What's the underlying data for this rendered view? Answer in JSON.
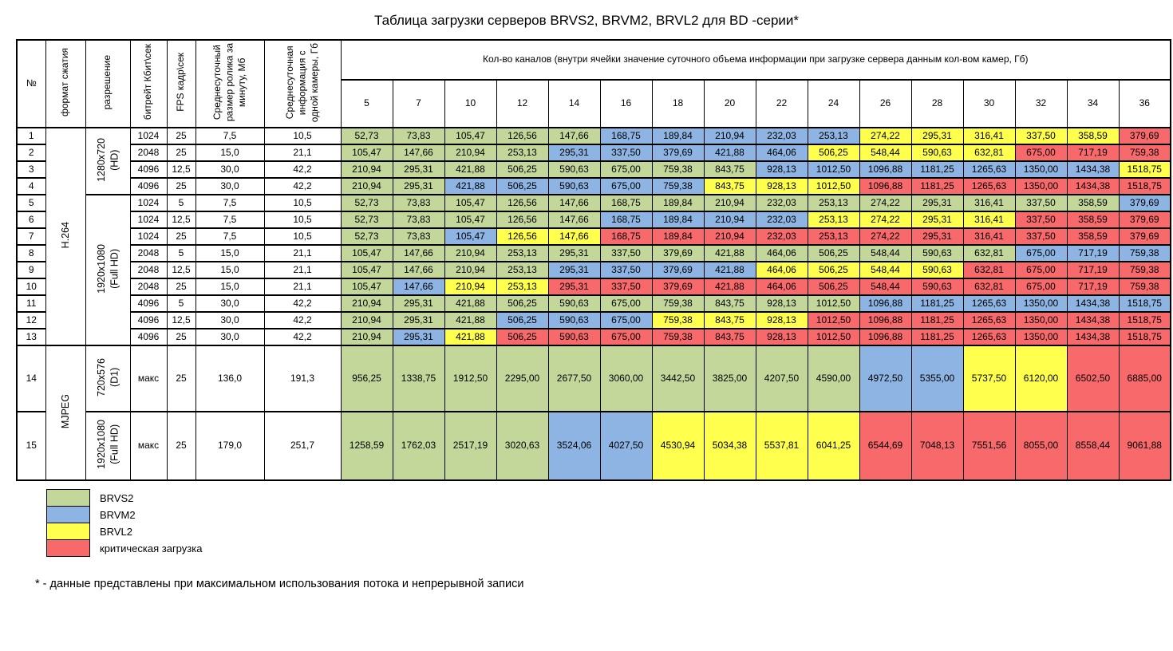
{
  "title": "Таблица загрузки серверов  BRVS2, BRVM2, BRVL2 для BD -серии*",
  "colors": {
    "G": "#c4d79b",
    "B": "#8db4e2",
    "Y": "#ffff4d",
    "R": "#f8696b"
  },
  "table": {
    "left_headers": [
      "№",
      "формат сжатия",
      "разрешение",
      "битрейт Кбит\\сек",
      "FPS кадр\\сек",
      "Среднесуточный\nразмер ролика за\nминуту, Мб",
      "Среднесуточная\nинформация с\nодной камеры, Гб"
    ],
    "channels_header": "Кол-во каналов (внутри ячейки значение суточного объема информации при загрузке сервера данным кол-вом камер, Гб)",
    "channels": [
      "5",
      "7",
      "10",
      "12",
      "14",
      "16",
      "18",
      "20",
      "22",
      "24",
      "26",
      "28",
      "30",
      "32",
      "34",
      "36"
    ],
    "format_groups": [
      {
        "label": "H.264",
        "start": 1,
        "end": 13
      },
      {
        "label": "MJPEG",
        "start": 14,
        "end": 15
      }
    ],
    "resolution_groups": [
      {
        "label": "1280x720\n(HD)",
        "start": 1,
        "end": 4
      },
      {
        "label": "1920x1080\n(Full HD)",
        "start": 5,
        "end": 13
      },
      {
        "label": "720x576\n(D1)",
        "start": 14,
        "end": 14
      },
      {
        "label": "1920x1080\n(Full HD)",
        "start": 15,
        "end": 15
      }
    ],
    "rows": [
      {
        "num": "1",
        "bitrate": "1024",
        "fps": "25",
        "size_min": "7,5",
        "per_cam": "10,5",
        "values": [
          "52,73",
          "73,83",
          "105,47",
          "126,56",
          "147,66",
          "168,75",
          "189,84",
          "210,94",
          "232,03",
          "253,13",
          "274,22",
          "295,31",
          "316,41",
          "337,50",
          "358,59",
          "379,69"
        ],
        "colors": "GGGGGBBBBBYYYYYR"
      },
      {
        "num": "2",
        "bitrate": "2048",
        "fps": "25",
        "size_min": "15,0",
        "per_cam": "21,1",
        "values": [
          "105,47",
          "147,66",
          "210,94",
          "253,13",
          "295,31",
          "337,50",
          "379,69",
          "421,88",
          "464,06",
          "506,25",
          "548,44",
          "590,63",
          "632,81",
          "675,00",
          "717,19",
          "759,38"
        ],
        "colors": "GGGGBBBBBYYYYRRR"
      },
      {
        "num": "3",
        "bitrate": "4096",
        "fps": "12,5",
        "size_min": "30,0",
        "per_cam": "42,2",
        "values": [
          "210,94",
          "295,31",
          "421,88",
          "506,25",
          "590,63",
          "675,00",
          "759,38",
          "843,75",
          "928,13",
          "1012,50",
          "1096,88",
          "1181,25",
          "1265,63",
          "1350,00",
          "1434,38",
          "1518,75"
        ],
        "colors": "GGGGGGGGBBBBBBBY"
      },
      {
        "num": "4",
        "bitrate": "4096",
        "fps": "25",
        "size_min": "30,0",
        "per_cam": "42,2",
        "values": [
          "210,94",
          "295,31",
          "421,88",
          "506,25",
          "590,63",
          "675,00",
          "759,38",
          "843,75",
          "928,13",
          "1012,50",
          "1096,88",
          "1181,25",
          "1265,63",
          "1350,00",
          "1434,38",
          "1518,75"
        ],
        "colors": "GGBBBBBYYYRRRRRR"
      },
      {
        "num": "5",
        "bitrate": "1024",
        "fps": "5",
        "size_min": "7,5",
        "per_cam": "10,5",
        "values": [
          "52,73",
          "73,83",
          "105,47",
          "126,56",
          "147,66",
          "168,75",
          "189,84",
          "210,94",
          "232,03",
          "253,13",
          "274,22",
          "295,31",
          "316,41",
          "337,50",
          "358,59",
          "379,69"
        ],
        "colors": "GGGGGGGGGGGGGGGB"
      },
      {
        "num": "6",
        "bitrate": "1024",
        "fps": "12,5",
        "size_min": "7,5",
        "per_cam": "10,5",
        "values": [
          "52,73",
          "73,83",
          "105,47",
          "126,56",
          "147,66",
          "168,75",
          "189,84",
          "210,94",
          "232,03",
          "253,13",
          "274,22",
          "295,31",
          "316,41",
          "337,50",
          "358,59",
          "379,69"
        ],
        "colors": "GGGGGBBBBYYYYRRR"
      },
      {
        "num": "7",
        "bitrate": "1024",
        "fps": "25",
        "size_min": "7,5",
        "per_cam": "10,5",
        "values": [
          "52,73",
          "73,83",
          "105,47",
          "126,56",
          "147,66",
          "168,75",
          "189,84",
          "210,94",
          "232,03",
          "253,13",
          "274,22",
          "295,31",
          "316,41",
          "337,50",
          "358,59",
          "379,69"
        ],
        "colors": "GGBYYRRRRRRRRRRR"
      },
      {
        "num": "8",
        "bitrate": "2048",
        "fps": "5",
        "size_min": "15,0",
        "per_cam": "21,1",
        "values": [
          "105,47",
          "147,66",
          "210,94",
          "253,13",
          "295,31",
          "337,50",
          "379,69",
          "421,88",
          "464,06",
          "506,25",
          "548,44",
          "590,63",
          "632,81",
          "675,00",
          "717,19",
          "759,38"
        ],
        "colors": "GGGGGGGGGGGGGBBB"
      },
      {
        "num": "9",
        "bitrate": "2048",
        "fps": "12,5",
        "size_min": "15,0",
        "per_cam": "21,1",
        "values": [
          "105,47",
          "147,66",
          "210,94",
          "253,13",
          "295,31",
          "337,50",
          "379,69",
          "421,88",
          "464,06",
          "506,25",
          "548,44",
          "590,63",
          "632,81",
          "675,00",
          "717,19",
          "759,38"
        ],
        "colors": "GGGGBBBBYYYYRRRR"
      },
      {
        "num": "10",
        "bitrate": "2048",
        "fps": "25",
        "size_min": "15,0",
        "per_cam": "21,1",
        "values": [
          "105,47",
          "147,66",
          "210,94",
          "253,13",
          "295,31",
          "337,50",
          "379,69",
          "421,88",
          "464,06",
          "506,25",
          "548,44",
          "590,63",
          "632,81",
          "675,00",
          "717,19",
          "759,38"
        ],
        "colors": "GBYYRRRRRRRRRRRR"
      },
      {
        "num": "11",
        "bitrate": "4096",
        "fps": "5",
        "size_min": "30,0",
        "per_cam": "42,2",
        "values": [
          "210,94",
          "295,31",
          "421,88",
          "506,25",
          "590,63",
          "675,00",
          "759,38",
          "843,75",
          "928,13",
          "1012,50",
          "1096,88",
          "1181,25",
          "1265,63",
          "1350,00",
          "1434,38",
          "1518,75"
        ],
        "colors": "GGGGGGGGGGBBBBBB"
      },
      {
        "num": "12",
        "bitrate": "4096",
        "fps": "12,5",
        "size_min": "30,0",
        "per_cam": "42,2",
        "values": [
          "210,94",
          "295,31",
          "421,88",
          "506,25",
          "590,63",
          "675,00",
          "759,38",
          "843,75",
          "928,13",
          "1012,50",
          "1096,88",
          "1181,25",
          "1265,63",
          "1350,00",
          "1434,38",
          "1518,75"
        ],
        "colors": "GGGBBBYYYRRRRRRR"
      },
      {
        "num": "13",
        "bitrate": "4096",
        "fps": "25",
        "size_min": "30,0",
        "per_cam": "42,2",
        "values": [
          "210,94",
          "295,31",
          "421,88",
          "506,25",
          "590,63",
          "675,00",
          "759,38",
          "843,75",
          "928,13",
          "1012,50",
          "1096,88",
          "1181,25",
          "1265,63",
          "1350,00",
          "1434,38",
          "1518,75"
        ],
        "colors": "GBYRRRRRRRRRRRRR"
      },
      {
        "num": "14",
        "bitrate": "макс",
        "fps": "25",
        "size_min": "136,0",
        "per_cam": "191,3",
        "values": [
          "956,25",
          "1338,75",
          "1912,50",
          "2295,00",
          "2677,50",
          "3060,00",
          "3442,50",
          "3825,00",
          "4207,50",
          "4590,00",
          "4972,50",
          "5355,00",
          "5737,50",
          "6120,00",
          "6502,50",
          "6885,00"
        ],
        "colors": "GGGGGGGGGGBBYYRR"
      },
      {
        "num": "15",
        "bitrate": "макс",
        "fps": "25",
        "size_min": "179,0",
        "per_cam": "251,7",
        "values": [
          "1258,59",
          "1762,03",
          "2517,19",
          "3020,63",
          "3524,06",
          "4027,50",
          "4530,94",
          "5034,38",
          "5537,81",
          "6041,25",
          "6544,69",
          "7048,13",
          "7551,56",
          "8055,00",
          "8558,44",
          "9061,88"
        ],
        "colors": "GGGGBBYYYYRRRRRR"
      }
    ]
  },
  "legend": [
    {
      "label": "BRVS2",
      "color": "G"
    },
    {
      "label": "BRVM2",
      "color": "B"
    },
    {
      "label": "BRVL2",
      "color": "Y"
    },
    {
      "label": "критическая загрузка",
      "color": "R"
    }
  ],
  "footnote": "* - данные представлены при максимальном использования потока и непрерывной записи"
}
